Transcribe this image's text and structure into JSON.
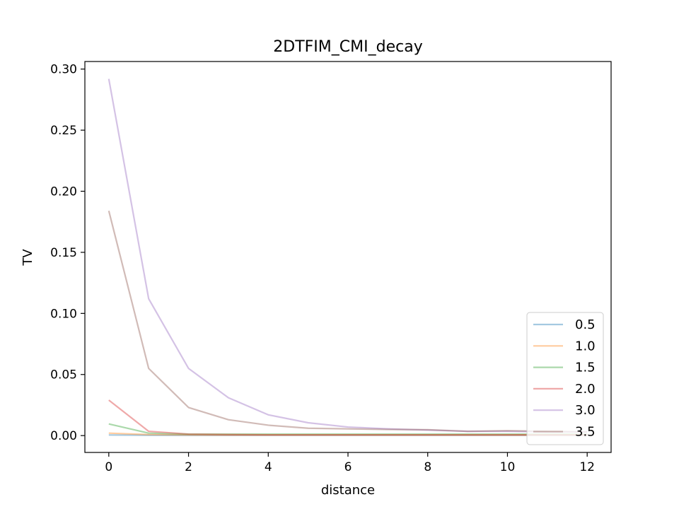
{
  "chart_data": {
    "type": "line",
    "title": "2DTFIM_CMI_decay",
    "xlabel": "distance",
    "ylabel": "TV",
    "xlim": [
      -0.6,
      12.6
    ],
    "ylim": [
      -0.0138,
      0.3062
    ],
    "xticks": [
      0,
      2,
      4,
      6,
      8,
      10,
      12
    ],
    "xtick_labels": [
      "0",
      "2",
      "4",
      "6",
      "8",
      "10",
      "12"
    ],
    "yticks": [
      0.0,
      0.05,
      0.1,
      0.15,
      0.2,
      0.25,
      0.3
    ],
    "ytick_labels": [
      "0.00",
      "0.05",
      "0.10",
      "0.15",
      "0.20",
      "0.25",
      "0.30"
    ],
    "grid": false,
    "legend_position": "lower-right",
    "x": [
      0,
      1,
      2,
      3,
      4,
      5,
      6,
      7,
      8,
      9,
      10,
      11,
      12
    ],
    "series": [
      {
        "name": "0.5",
        "color": "#1f77b4",
        "values": [
          0.0005,
          0.0003,
          0.0002,
          0.0002,
          0.0002,
          0.0002,
          0.0002,
          0.0002,
          0.0002,
          0.0002,
          0.0002,
          0.0002,
          0.0002
        ]
      },
      {
        "name": "1.0",
        "color": "#ff7f0e",
        "values": [
          0.002,
          0.0008,
          0.0005,
          0.0004,
          0.0004,
          0.0004,
          0.0004,
          0.0004,
          0.0004,
          0.0004,
          0.0004,
          0.0004,
          0.0004
        ]
      },
      {
        "name": "1.5",
        "color": "#2ca02c",
        "values": [
          0.0095,
          0.002,
          0.0012,
          0.0012,
          0.0012,
          0.0012,
          0.0012,
          0.0012,
          0.0012,
          0.0012,
          0.0012,
          0.0012,
          0.0012
        ]
      },
      {
        "name": "2.0",
        "color": "#d62728",
        "values": [
          0.029,
          0.0035,
          0.0012,
          0.0008,
          0.0006,
          0.0006,
          0.0006,
          0.0006,
          0.0006,
          0.0006,
          0.0006,
          0.0006,
          0.0006
        ]
      },
      {
        "name": "3.0",
        "color": "#9467bd",
        "values": [
          0.292,
          0.112,
          0.055,
          0.031,
          0.017,
          0.0105,
          0.007,
          0.0055,
          0.0045,
          0.0035,
          0.0035,
          0.003,
          0.003
        ]
      },
      {
        "name": "3.5",
        "color": "#8c564b",
        "values": [
          0.184,
          0.055,
          0.023,
          0.013,
          0.0085,
          0.006,
          0.0055,
          0.005,
          0.0048,
          0.0035,
          0.004,
          0.0035,
          0.003
        ]
      }
    ]
  }
}
